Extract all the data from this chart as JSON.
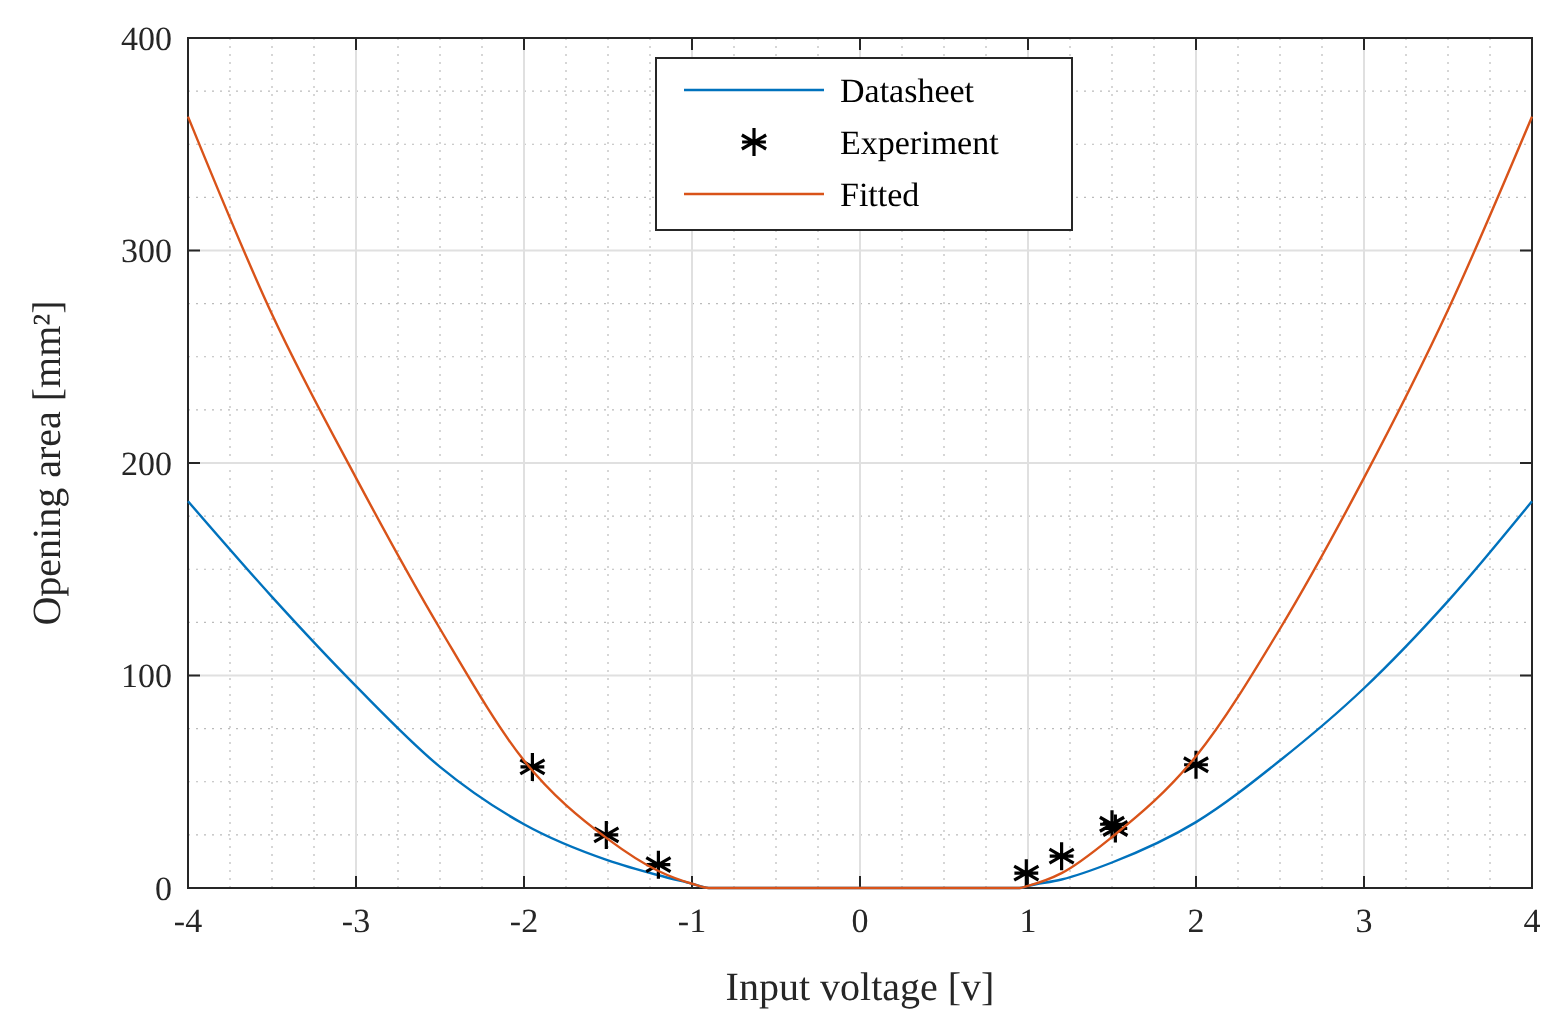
{
  "chart_data": {
    "type": "line",
    "xlabel": "Input voltage [v]",
    "ylabel": "Opening area [mm²]",
    "xlim": [
      -4,
      4
    ],
    "ylim": [
      0,
      400
    ],
    "xticks": [
      -4,
      -3,
      -2,
      -1,
      0,
      1,
      2,
      3,
      4
    ],
    "yticks": [
      0,
      100,
      200,
      300,
      400
    ],
    "grid": true,
    "legend": "top",
    "series": [
      {
        "name": "Datasheet",
        "color": "#0072bd",
        "x": [
          -4,
          -3.5,
          -3,
          -2.5,
          -2,
          -1.5,
          -1.2,
          -1,
          -0.9,
          0.95,
          1,
          1.2,
          1.5,
          2,
          2.5,
          3,
          3.5,
          4
        ],
        "values": [
          182,
          137,
          95,
          57,
          30,
          13,
          6,
          2,
          0,
          0,
          1,
          4,
          12,
          31,
          60,
          94,
          135,
          182
        ]
      },
      {
        "name": "Experiment",
        "type": "scatter",
        "marker": "cross",
        "color": "#000000",
        "x": [
          -1.95,
          -1.51,
          -1.2,
          0.99,
          1.2,
          1.5,
          1.52,
          2
        ],
        "values": [
          57,
          25,
          11,
          7,
          15,
          30,
          28,
          58
        ]
      },
      {
        "name": "Fitted",
        "color": "#d95319",
        "x": [
          -4,
          -3.5,
          -3,
          -2.5,
          -2,
          -1.5,
          -1.2,
          -1,
          -0.9,
          0.95,
          1,
          1.2,
          1.5,
          2,
          2.5,
          3,
          3.5,
          4
        ],
        "values": [
          363,
          270,
          193,
          122,
          60,
          23,
          8,
          2,
          0,
          0,
          1,
          7,
          24,
          62,
          122,
          193,
          272,
          363
        ]
      }
    ]
  }
}
